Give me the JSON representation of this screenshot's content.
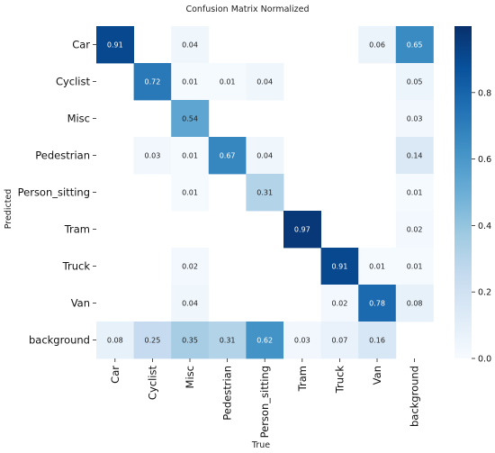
{
  "chart_data": {
    "type": "heatmap",
    "title": "Confusion Matrix Normalized",
    "xlabel": "True",
    "ylabel": "Predicted",
    "x_categories": [
      "Car",
      "Cyclist",
      "Misc",
      "Pedestrian",
      "Person_sitting",
      "Tram",
      "Truck",
      "Van",
      "background"
    ],
    "y_categories": [
      "Car",
      "Cyclist",
      "Misc",
      "Pedestrian",
      "Person_sitting",
      "Tram",
      "Truck",
      "Van",
      "background"
    ],
    "values": [
      [
        0.91,
        null,
        0.04,
        null,
        null,
        null,
        null,
        0.06,
        0.65
      ],
      [
        null,
        0.72,
        0.01,
        0.01,
        0.04,
        null,
        null,
        null,
        0.05
      ],
      [
        null,
        null,
        0.54,
        null,
        null,
        null,
        null,
        null,
        0.03
      ],
      [
        null,
        0.03,
        0.01,
        0.67,
        0.04,
        null,
        null,
        null,
        0.14
      ],
      [
        null,
        null,
        0.01,
        null,
        0.31,
        null,
        null,
        null,
        0.01
      ],
      [
        null,
        null,
        null,
        null,
        null,
        0.97,
        null,
        null,
        0.02
      ],
      [
        null,
        null,
        0.02,
        null,
        null,
        null,
        0.91,
        0.01,
        0.01
      ],
      [
        null,
        null,
        0.04,
        null,
        null,
        null,
        0.02,
        0.78,
        0.08
      ],
      [
        0.08,
        0.25,
        0.35,
        0.31,
        0.62,
        0.03,
        0.07,
        0.16,
        null
      ]
    ],
    "colorbar": {
      "min": 0.0,
      "max": 1.0,
      "ticks": [
        "0.0",
        "0.2",
        "0.4",
        "0.6",
        "0.8"
      ],
      "tick_values": [
        0.0,
        0.2,
        0.4,
        0.6,
        0.8
      ]
    },
    "colormap": [
      "#f7fbff",
      "#deebf7",
      "#c6dbef",
      "#9ecae1",
      "#6baed6",
      "#4292c6",
      "#2171b5",
      "#08519c",
      "#08306b"
    ],
    "grid": false,
    "legend": "colorbar-right"
  }
}
